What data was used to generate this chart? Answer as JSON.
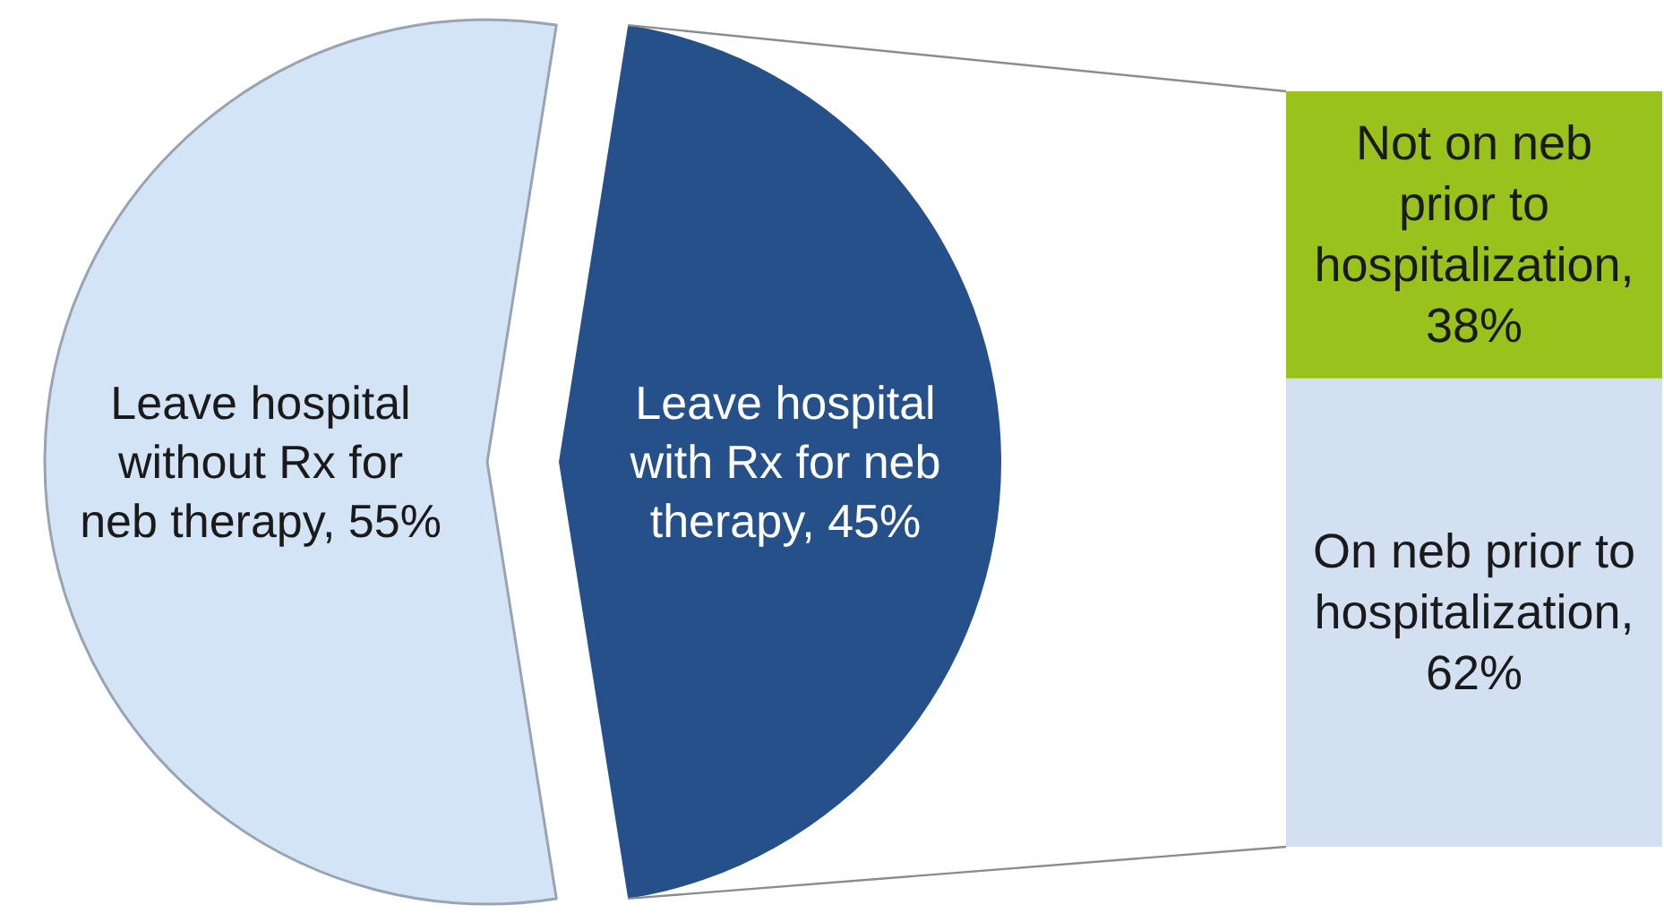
{
  "chart_data": [
    {
      "type": "pie",
      "categories": [
        "Leave hospital without Rx for neb therapy",
        "Leave hospital with Rx for neb therapy"
      ],
      "values": [
        55,
        45
      ],
      "colors": [
        "#d4e4f7",
        "#26508a"
      ],
      "value_labels": [
        ", 55%",
        ", 45%"
      ]
    },
    {
      "type": "bar",
      "stacked": true,
      "categories": [
        null
      ],
      "tick_labels": false,
      "series": [
        {
          "name": "On neb prior to hospitalization,",
          "color": "#d3e0f2",
          "values": [
            62
          ],
          "value_labels": [
            "62%"
          ]
        },
        {
          "name": "Not on neb prior to hospitalization,",
          "color": "#99c31c",
          "values": [
            38
          ],
          "value_labels": [
            "38%"
          ]
        }
      ]
    }
  ]
}
